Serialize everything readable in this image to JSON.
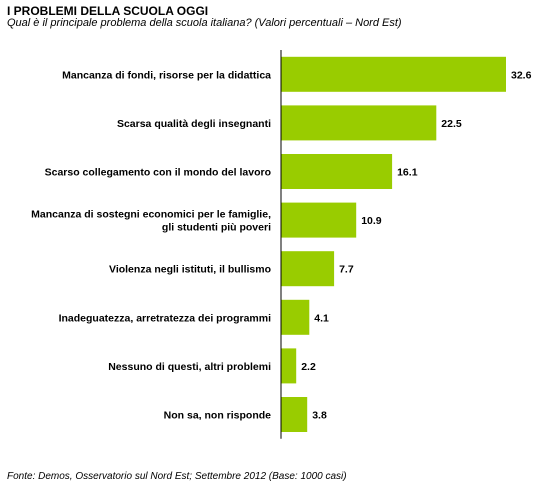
{
  "title": "I PROBLEMI DELLA SCUOLA OGGI",
  "subtitle": "Qual è il principale problema della scuola italiana? (Valori percentuali – Nord Est)",
  "source": "Fonte: Demos, Osservatorio sul Nord Est; Settembre 2012 (Base: 1000 casi)",
  "colors": {
    "bar": "#99cc00",
    "axis": "#000000"
  },
  "chart_data": {
    "type": "bar",
    "orientation": "horizontal",
    "categories": [
      [
        "Mancanza di fondi, risorse per la didattica"
      ],
      [
        "Scarsa qualità degli insegnanti"
      ],
      [
        "Scarso collegamento con il mondo del lavoro"
      ],
      [
        "Mancanza di sostegni economici per le famiglie,",
        "gli studenti più poveri"
      ],
      [
        "Violenza negli istituti, il bullismo"
      ],
      [
        "Inadeguatezza, arretratezza dei programmi"
      ],
      [
        "Nessuno di questi, altri problemi"
      ],
      [
        "Non sa, non risponde"
      ]
    ],
    "values": [
      32.6,
      22.5,
      16.1,
      10.9,
      7.7,
      4.1,
      2.2,
      3.8
    ],
    "value_labels": [
      "32.6",
      "22.5",
      "16.1",
      "10.9",
      "7.7",
      "4.1",
      "2.2",
      "3.8"
    ],
    "xlim": [
      0,
      32.6
    ],
    "grid": false,
    "legend": "none"
  }
}
